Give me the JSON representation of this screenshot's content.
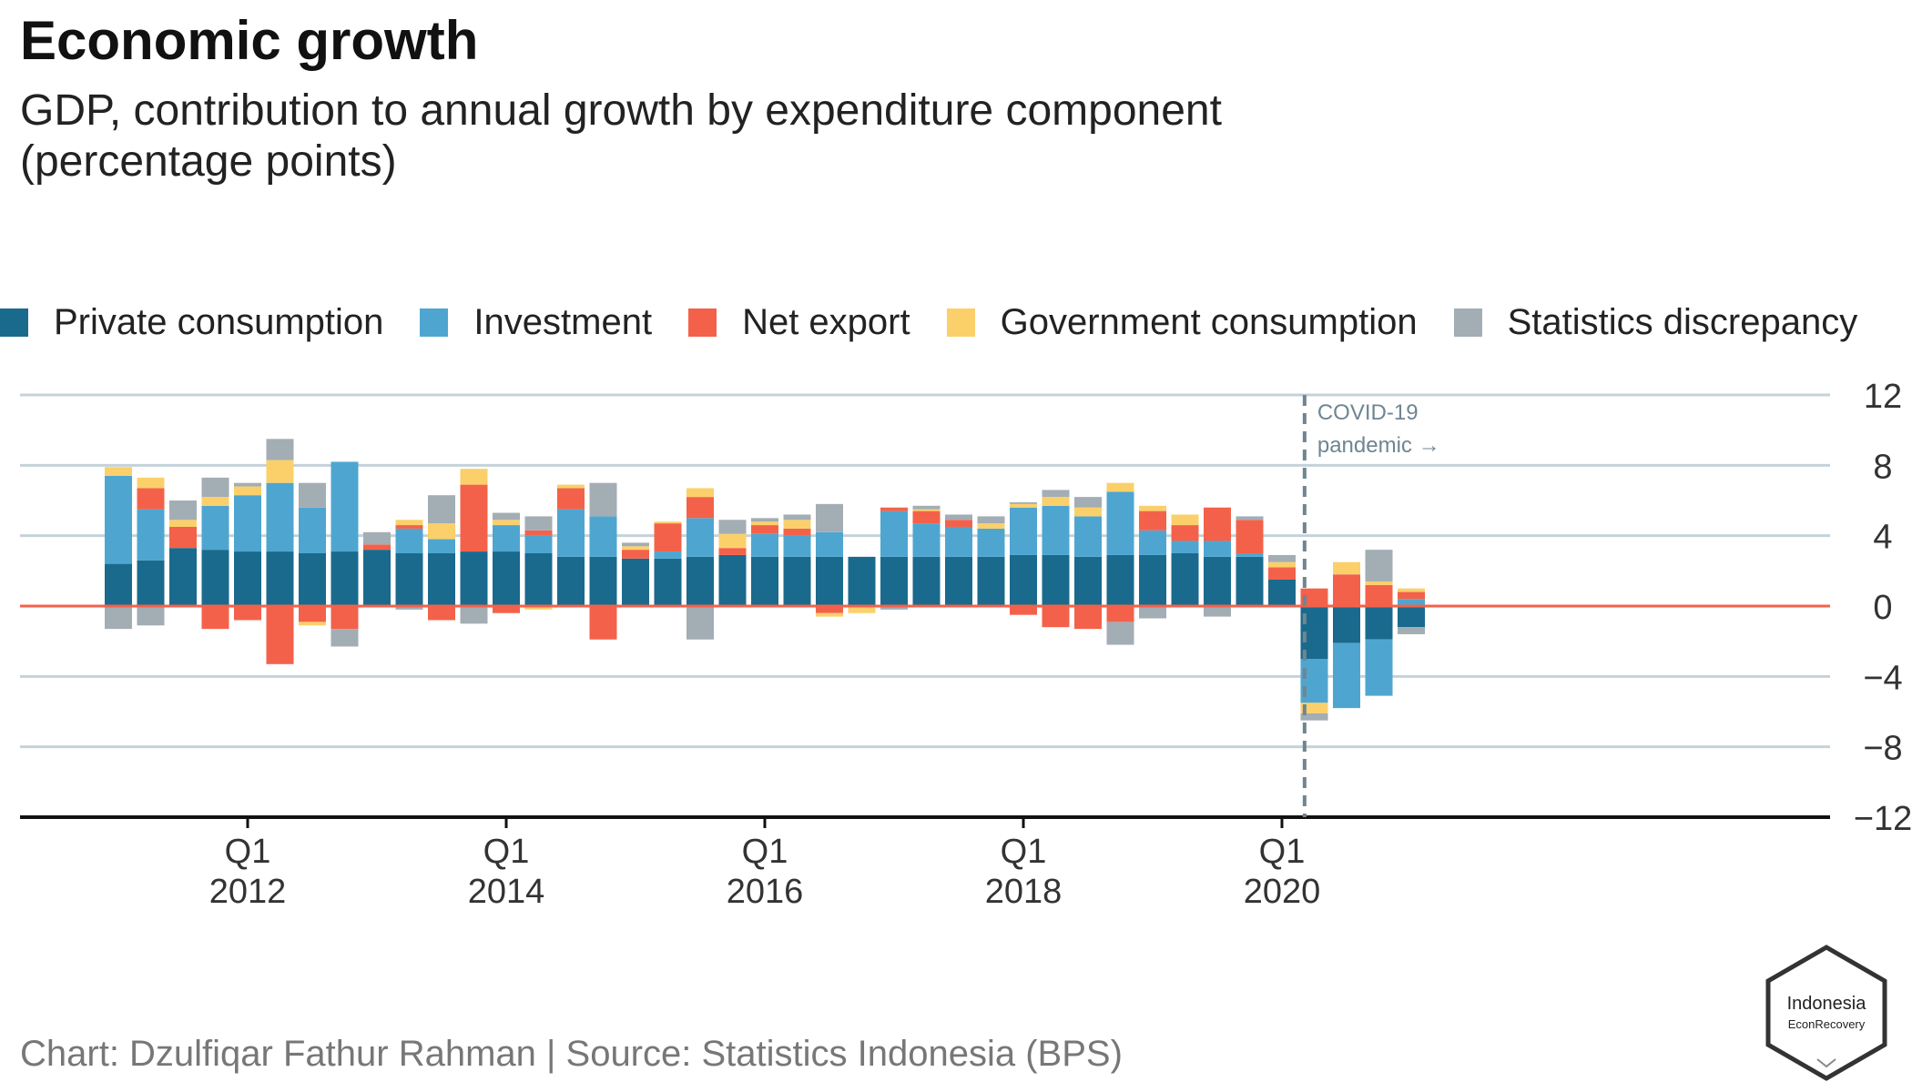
{
  "title": "Economic growth",
  "subtitle_line1": "GDP, contribution to annual growth by expenditure component",
  "subtitle_line2": "(percentage points)",
  "source": "Chart: Dzulfiqar Fathur Rahman | Source: Statistics Indonesia (BPS)",
  "logo": {
    "line1": "Indonesia",
    "line2": "EconRecovery"
  },
  "annotation": {
    "line1": "COVID-19",
    "line2": "pandemic →"
  },
  "colors": {
    "Private consumption": "#1a6a8e",
    "Investment": "#4ea6d0",
    "Net export": "#f4614a",
    "Government consumption": "#fbd06a",
    "Statistics discrepancy": "#a3adb4",
    "zero_line": "#f4614a",
    "grid": "#c5d2d9",
    "covid_line": "#6f8592"
  },
  "chart_data": {
    "type": "bar",
    "stacked": true,
    "x_labels": [
      {
        "q": "Q1",
        "year": "2012",
        "index": 4
      },
      {
        "q": "Q1",
        "year": "2014",
        "index": 12
      },
      {
        "q": "Q1",
        "year": "2016",
        "index": 20
      },
      {
        "q": "Q1",
        "year": "2018",
        "index": 28
      },
      {
        "q": "Q1",
        "year": "2020",
        "index": 36
      }
    ],
    "quarters": [
      "2011Q1",
      "2011Q2",
      "2011Q3",
      "2011Q4",
      "2012Q1",
      "2012Q2",
      "2012Q3",
      "2012Q4",
      "2013Q1",
      "2013Q2",
      "2013Q3",
      "2013Q4",
      "2014Q1",
      "2014Q2",
      "2014Q3",
      "2014Q4",
      "2015Q1",
      "2015Q2",
      "2015Q3",
      "2015Q4",
      "2016Q1",
      "2016Q2",
      "2016Q3",
      "2016Q4",
      "2017Q1",
      "2017Q2",
      "2017Q3",
      "2017Q4",
      "2018Q1",
      "2018Q2",
      "2018Q3",
      "2018Q4",
      "2019Q1",
      "2019Q2",
      "2019Q3",
      "2019Q4",
      "2020Q1",
      "2020Q2",
      "2020Q3",
      "2020Q4",
      "2021Q1"
    ],
    "ylim": [
      -12,
      12
    ],
    "yticks": [
      12,
      8,
      4,
      0,
      -4,
      -8,
      -12
    ],
    "grid": true,
    "legend_position": "top",
    "covid_marker_index": 36.7,
    "series": [
      {
        "name": "Private consumption",
        "values": [
          2.4,
          2.6,
          3.3,
          3.2,
          3.1,
          3.1,
          3.0,
          3.1,
          3.2,
          3.0,
          3.0,
          3.1,
          3.1,
          3.0,
          2.8,
          2.8,
          2.7,
          2.7,
          2.8,
          2.9,
          2.8,
          2.8,
          2.8,
          2.8,
          2.8,
          2.8,
          2.8,
          2.8,
          2.9,
          2.9,
          2.8,
          2.9,
          2.9,
          3.0,
          2.8,
          2.8,
          1.5,
          -3.0,
          -2.1,
          -1.9,
          -1.2
        ]
      },
      {
        "name": "Investment",
        "values": [
          5.0,
          2.9,
          0.0,
          2.5,
          3.2,
          3.9,
          2.6,
          5.1,
          0.0,
          1.4,
          0.8,
          0.0,
          1.5,
          1.0,
          2.7,
          2.3,
          0.0,
          0.4,
          2.2,
          0.0,
          1.3,
          1.2,
          1.4,
          0.0,
          2.6,
          1.9,
          1.7,
          1.6,
          2.7,
          2.8,
          2.3,
          3.6,
          1.4,
          0.7,
          0.9,
          0.2,
          0.0,
          -2.5,
          -3.7,
          -3.2,
          0.4
        ]
      },
      {
        "name": "Net export",
        "values": [
          0.0,
          1.2,
          1.2,
          -1.3,
          -0.8,
          -3.3,
          -0.9,
          -1.3,
          0.3,
          0.2,
          -0.8,
          3.8,
          -0.4,
          0.3,
          1.2,
          -1.9,
          0.5,
          1.6,
          1.2,
          0.4,
          0.5,
          0.4,
          -0.4,
          0.0,
          0.2,
          0.7,
          0.4,
          0.0,
          -0.5,
          -1.2,
          -1.3,
          -0.9,
          1.1,
          0.9,
          1.9,
          1.9,
          0.7,
          1.0,
          1.8,
          1.2,
          0.4
        ]
      },
      {
        "name": "Government consumption",
        "values": [
          0.5,
          0.6,
          0.4,
          0.5,
          0.5,
          1.3,
          -0.2,
          0.0,
          0.0,
          0.3,
          0.9,
          0.9,
          0.3,
          -0.2,
          0.2,
          0.0,
          0.2,
          0.1,
          0.5,
          0.8,
          0.2,
          0.5,
          -0.2,
          -0.4,
          0.0,
          0.1,
          0.0,
          0.3,
          0.2,
          0.5,
          0.5,
          0.5,
          0.3,
          0.6,
          0.0,
          0.0,
          0.3,
          -0.6,
          0.7,
          0.2,
          0.2
        ]
      },
      {
        "name": "Statistics discrepancy",
        "values": [
          -1.3,
          -1.1,
          1.1,
          1.1,
          0.2,
          1.2,
          1.4,
          -1.0,
          0.7,
          -0.2,
          1.6,
          -1.0,
          0.4,
          0.8,
          0.0,
          1.9,
          0.2,
          0.0,
          -1.9,
          0.8,
          0.2,
          0.3,
          1.6,
          0.0,
          -0.2,
          0.2,
          0.3,
          0.4,
          0.1,
          0.4,
          0.6,
          -1.3,
          -0.7,
          0.0,
          -0.6,
          0.2,
          0.4,
          -0.4,
          0.0,
          1.8,
          -0.4
        ]
      }
    ]
  }
}
